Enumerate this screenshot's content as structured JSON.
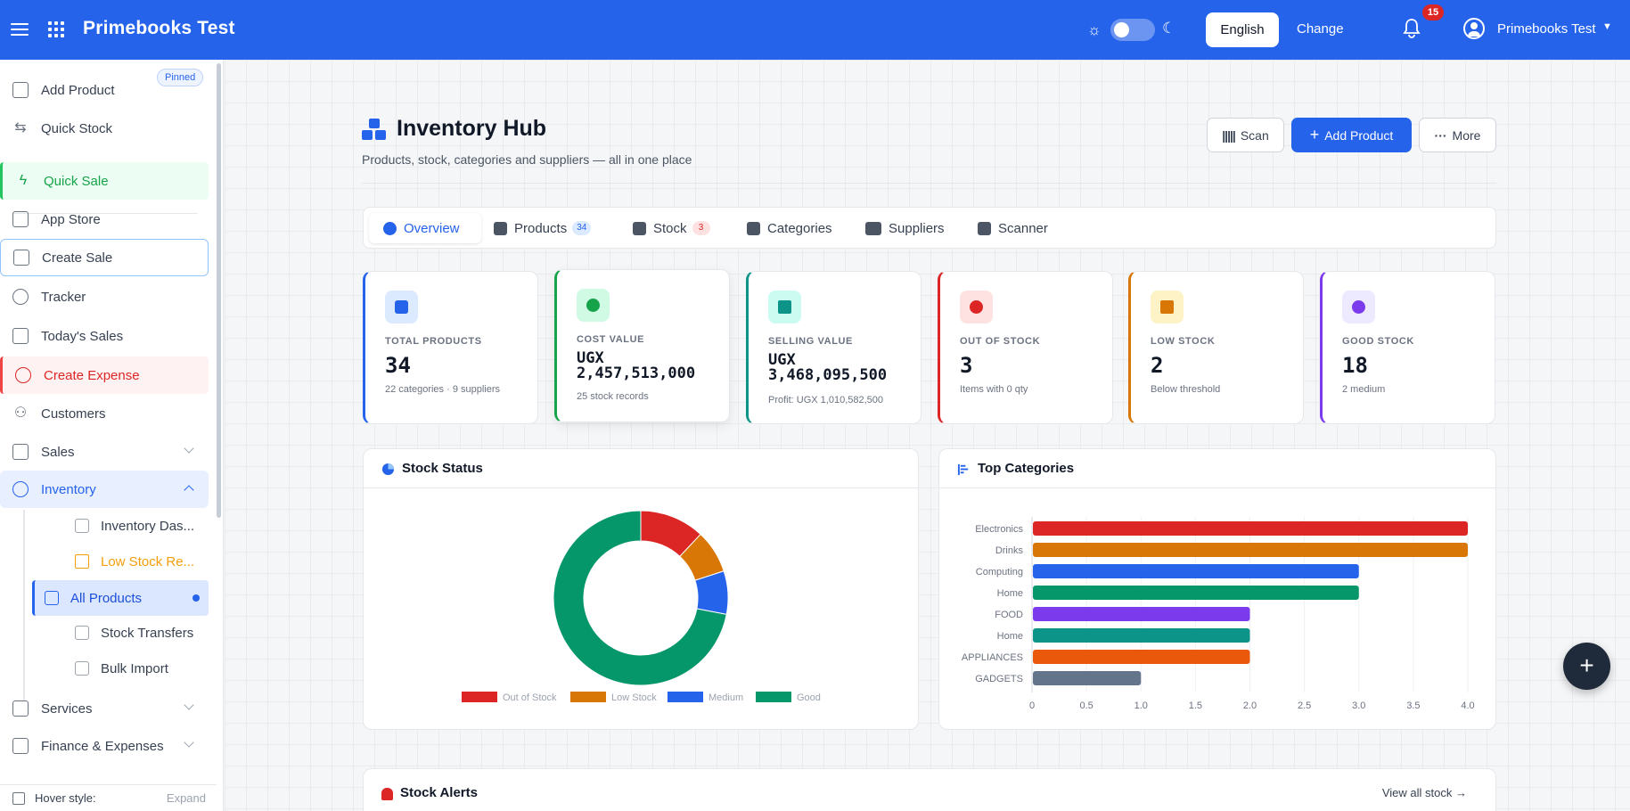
{
  "topbar": {
    "brand": "Primebooks Test",
    "language": "English",
    "change": "Change",
    "notifications": "15",
    "user": "Primebooks Test"
  },
  "sidebar": {
    "pinned": "Pinned",
    "items": [
      {
        "label": "Add Product",
        "icon": "plus-square-icon"
      },
      {
        "label": "Quick Stock",
        "icon": "arrows-icon"
      },
      {
        "label": "Quick Sale",
        "icon": "lightning-icon"
      },
      {
        "label": "App Store",
        "icon": "bag-icon"
      },
      {
        "label": "Create Sale",
        "icon": "receipt-icon"
      },
      {
        "label": "Tracker",
        "icon": "circle-icon"
      },
      {
        "label": "Today's Sales",
        "icon": "calendar-icon"
      },
      {
        "label": "Create Expense",
        "icon": "plus-circle-icon"
      },
      {
        "label": "Customers",
        "icon": "users-icon"
      },
      {
        "label": "Sales",
        "icon": "cart-icon"
      },
      {
        "label": "Inventory",
        "icon": "boxes-icon"
      },
      {
        "label": "Services",
        "icon": "briefcase-icon"
      },
      {
        "label": "Finance & Expenses",
        "icon": "money-icon"
      }
    ],
    "sub_items": [
      {
        "label": "Inventory Das...",
        "icon": "gauge-icon"
      },
      {
        "label": "Low Stock Re...",
        "icon": "warning-icon"
      },
      {
        "label": "All Products",
        "icon": "basket-icon"
      },
      {
        "label": "Stock Transfers",
        "icon": "arrows-icon"
      },
      {
        "label": "Bulk Import",
        "icon": "upload-icon"
      }
    ],
    "hover_style_label": "Hover style:",
    "hover_style_value": "Expand"
  },
  "header": {
    "title": "Inventory Hub",
    "subtitle": "Products, stock, categories and suppliers — all in one place",
    "scan": "Scan",
    "add_product": "Add Product",
    "more": "More"
  },
  "tabs": [
    {
      "label": "Overview"
    },
    {
      "label": "Products",
      "count": "34"
    },
    {
      "label": "Stock",
      "count": "3"
    },
    {
      "label": "Categories"
    },
    {
      "label": "Suppliers"
    },
    {
      "label": "Scanner"
    }
  ],
  "stats": [
    {
      "label": "TOTAL PRODUCTS",
      "value": "34",
      "note": "22 categories · 9 suppliers",
      "color": "#2563eb"
    },
    {
      "label": "COST VALUE",
      "value": "UGX 2,457,513,000",
      "note": "25 stock records",
      "color": "#16a34a"
    },
    {
      "label": "SELLING VALUE",
      "value": "UGX 3,468,095,500",
      "note": "Profit: UGX 1,010,582,500",
      "color": "#0d9488"
    },
    {
      "label": "OUT OF STOCK",
      "value": "3",
      "note": "Items with 0 qty",
      "color": "#dc2626"
    },
    {
      "label": "LOW STOCK",
      "value": "2",
      "note": "Below threshold",
      "color": "#d97706"
    },
    {
      "label": "GOOD STOCK",
      "value": "18",
      "note": "2 medium",
      "color": "#7c3aed"
    }
  ],
  "panels": {
    "stock_status": "Stock Status",
    "top_categories": "Top Categories",
    "stock_alerts": "Stock Alerts",
    "view_all": "View all stock →"
  },
  "chart_data": [
    {
      "type": "pie",
      "title": "Stock Status",
      "categories": [
        "Out of Stock",
        "Low Stock",
        "Medium",
        "Good"
      ],
      "values": [
        3,
        2,
        2,
        18
      ],
      "colors": [
        "#dc2626",
        "#d97706",
        "#2563eb",
        "#059669"
      ],
      "legend": "bottom"
    },
    {
      "type": "bar",
      "orientation": "horizontal",
      "title": "Top Categories",
      "categories": [
        "Electronics",
        "Drinks",
        "Computing",
        "Home",
        "FOOD",
        "Home",
        "APPLIANCES",
        "GADGETS"
      ],
      "values": [
        4,
        4,
        3,
        3,
        2,
        2,
        2,
        1
      ],
      "colors": [
        "#dc2626",
        "#d97706",
        "#2563eb",
        "#059669",
        "#7c3aed",
        "#0d9488",
        "#ea580c",
        "#64748b"
      ],
      "xlim": [
        0,
        4
      ],
      "xticks": [
        "0",
        "0.5",
        "1.0",
        "1.5",
        "2.0",
        "2.5",
        "3.0",
        "3.5",
        "4.0"
      ]
    }
  ]
}
